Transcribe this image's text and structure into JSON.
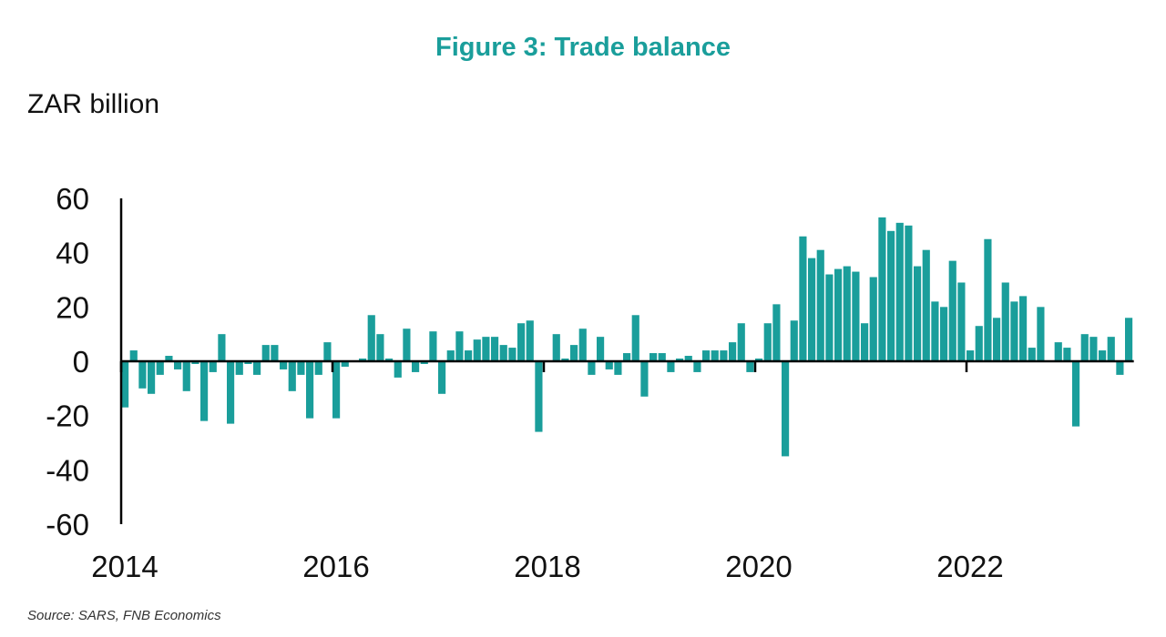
{
  "title": "Figure 3: Trade balance",
  "unit_label": "ZAR billion",
  "source": "Source: SARS, FNB Economics",
  "colors": {
    "bar": "#1a9e9b",
    "title": "#1a9e9b",
    "axis": "#000000"
  },
  "chart_data": {
    "type": "bar",
    "title": "Figure 3: Trade balance",
    "ylabel": "ZAR billion",
    "xlabel": "",
    "ylim": [
      -60,
      60
    ],
    "yticks": [
      60,
      40,
      20,
      0,
      -20,
      -40,
      -60
    ],
    "xticks": [
      "2014",
      "2016",
      "2018",
      "2020",
      "2022"
    ],
    "x_start": "2014-01",
    "frequency": "monthly",
    "grid": false,
    "legend": "none",
    "values": [
      -17,
      4,
      -10,
      -12,
      -5,
      2,
      -3,
      -11,
      -1,
      -22,
      -4,
      10,
      -23,
      -5,
      -1,
      -5,
      6,
      6,
      -3,
      -11,
      -5,
      -21,
      -5,
      7,
      -21,
      -2,
      0,
      1,
      17,
      10,
      1,
      -6,
      12,
      -4,
      -1,
      11,
      -12,
      4,
      11,
      4,
      8,
      9,
      9,
      6,
      5,
      14,
      15,
      -26,
      0,
      10,
      1,
      6,
      12,
      -5,
      9,
      -3,
      -5,
      3,
      17,
      -13,
      3,
      3,
      -4,
      1,
      2,
      -4,
      4,
      4,
      4,
      7,
      14,
      -4,
      1,
      14,
      21,
      -35,
      15,
      46,
      38,
      41,
      32,
      34,
      35,
      33,
      14,
      31,
      53,
      48,
      51,
      50,
      35,
      41,
      22,
      20,
      37,
      29,
      4,
      13,
      45,
      16,
      29,
      22,
      24,
      5,
      20,
      0,
      7,
      5,
      -24,
      10,
      9,
      4,
      9,
      -5,
      16
    ]
  }
}
